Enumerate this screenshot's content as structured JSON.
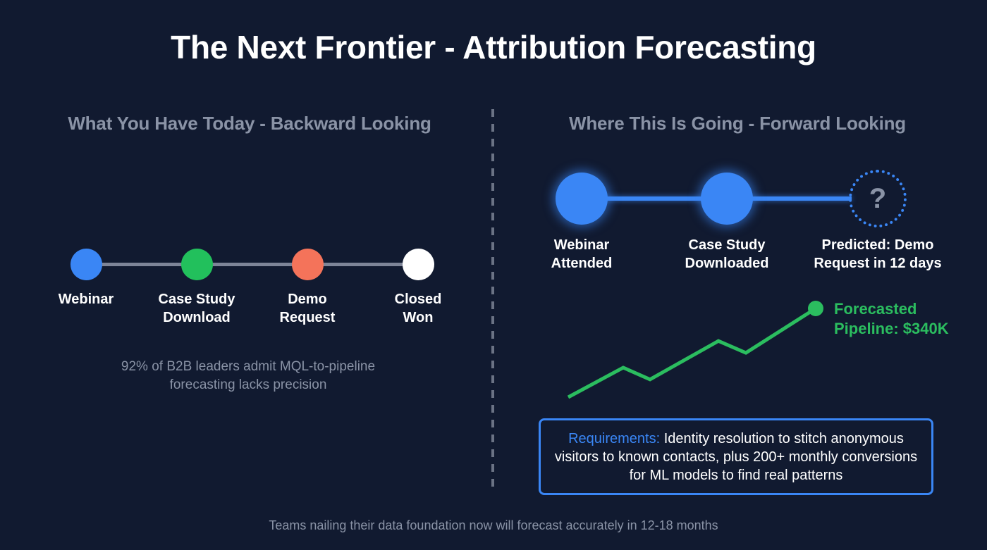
{
  "title": "The Next Frontier - Attribution Forecasting",
  "left": {
    "header": "What You Have Today - Backward Looking",
    "steps": [
      {
        "line1": "Webinar",
        "line2": "",
        "color": "#3a86f5"
      },
      {
        "line1": "Case Study",
        "line2": "Download",
        "color": "#22c05c"
      },
      {
        "line1": "Demo",
        "line2": "Request",
        "color": "#f4735a"
      },
      {
        "line1": "Closed",
        "line2": "Won",
        "color": "#ffffff"
      }
    ],
    "line_color": "#7d8497",
    "stat_line1": "92% of B2B leaders admit MQL-to-pipeline",
    "stat_line2": "forecasting lacks precision"
  },
  "right": {
    "header": "Where This Is Going - Forward Looking",
    "steps": [
      {
        "line1": "Webinar",
        "line2": "Attended"
      },
      {
        "line1": "Case Study",
        "line2": "Downloaded"
      },
      {
        "line1": "Predicted: Demo",
        "line2": "Request in 12 days",
        "icon": "question-mark-icon",
        "glyph": "?"
      }
    ],
    "accent_color": "#3a86f5",
    "forecast": {
      "line1": "Forecasted",
      "line2": "Pipeline: $340K",
      "color": "#2bbd5f"
    },
    "requirements": {
      "label": "Requirements:",
      "text": " Identity resolution to stitch anonymous visitors to known contacts, plus 200+ monthly conversions for ML models to find real patterns"
    }
  },
  "chart_data": {
    "type": "line",
    "title": "",
    "xlabel": "",
    "ylabel": "",
    "x": [
      0,
      1,
      2,
      3,
      4,
      5
    ],
    "series": [
      {
        "name": "Forecasted Pipeline",
        "values": [
          1.0,
          2.0,
          1.6,
          2.9,
          2.5,
          4.0
        ]
      }
    ],
    "annotations": [
      "Forecasted Pipeline: $340K"
    ],
    "grid": false
  },
  "footer": "Teams nailing their data foundation now will forecast accurately in 12-18 months"
}
